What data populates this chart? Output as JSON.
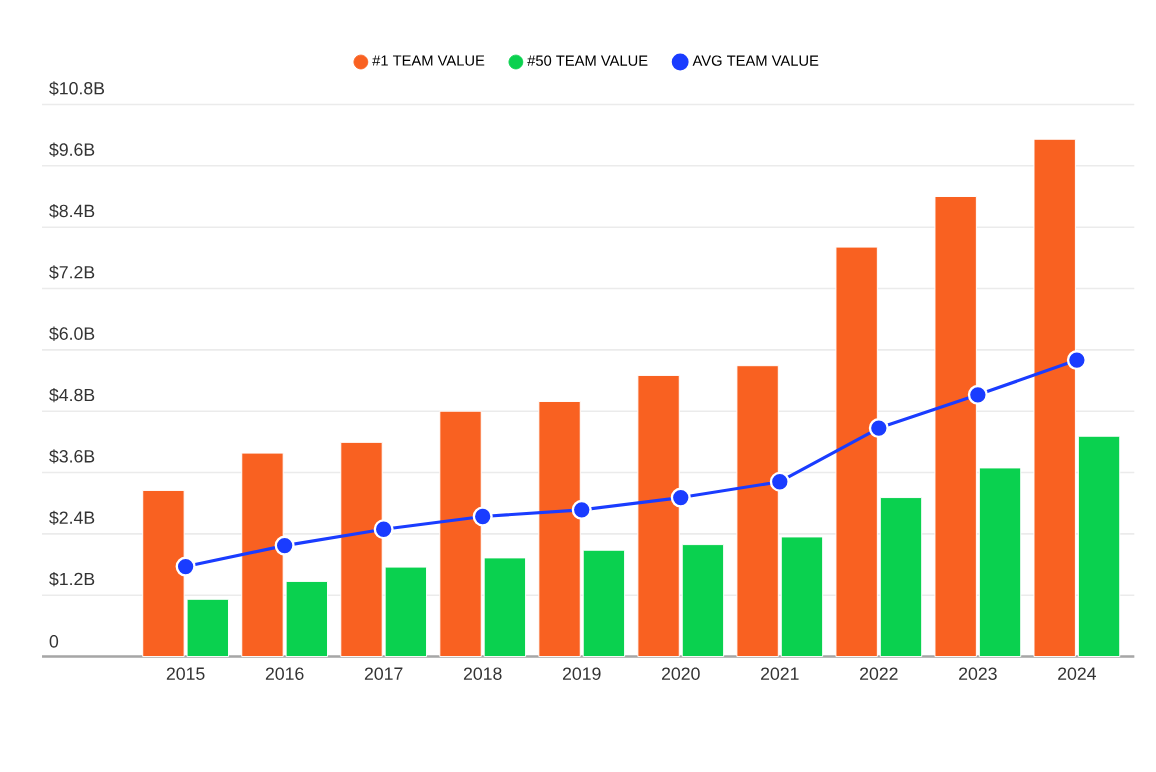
{
  "chart_data": {
    "type": "bar",
    "categories": [
      "2015",
      "2016",
      "2017",
      "2018",
      "2019",
      "2020",
      "2021",
      "2022",
      "2023",
      "2024"
    ],
    "series": [
      {
        "name": "#1 TEAM VALUE",
        "color": "#f96121",
        "values": [
          3.25,
          3.98,
          4.19,
          4.8,
          4.99,
          5.5,
          5.69,
          8.01,
          9.0,
          10.12
        ]
      },
      {
        "name": "#50 TEAM VALUE",
        "color": "#0ad14f",
        "values": [
          1.12,
          1.47,
          1.75,
          1.93,
          2.08,
          2.19,
          2.34,
          3.11,
          3.69,
          4.31
        ]
      },
      {
        "name": "AVG TEAM VALUE",
        "type": "line",
        "color": "#1a3cff",
        "values": [
          1.76,
          2.17,
          2.49,
          2.74,
          2.87,
          3.11,
          3.42,
          4.47,
          5.12,
          5.8
        ]
      }
    ],
    "ylim": [
      0,
      10.8
    ],
    "yticks": [
      {
        "value": 0,
        "label": "0"
      },
      {
        "value": 1.2,
        "label": "$1.2B"
      },
      {
        "value": 2.4,
        "label": "$2.4B"
      },
      {
        "value": 3.6,
        "label": "$3.6B"
      },
      {
        "value": 4.8,
        "label": "$4.8B"
      },
      {
        "value": 6.0,
        "label": "$6.0B"
      },
      {
        "value": 7.2,
        "label": "$7.2B"
      },
      {
        "value": 8.4,
        "label": "$8.4B"
      },
      {
        "value": 9.6,
        "label": "$9.6B"
      },
      {
        "value": 10.8,
        "label": "$10.8B"
      }
    ],
    "grid": "y",
    "legend": "top",
    "marker": "circle",
    "line_style": "solid"
  }
}
